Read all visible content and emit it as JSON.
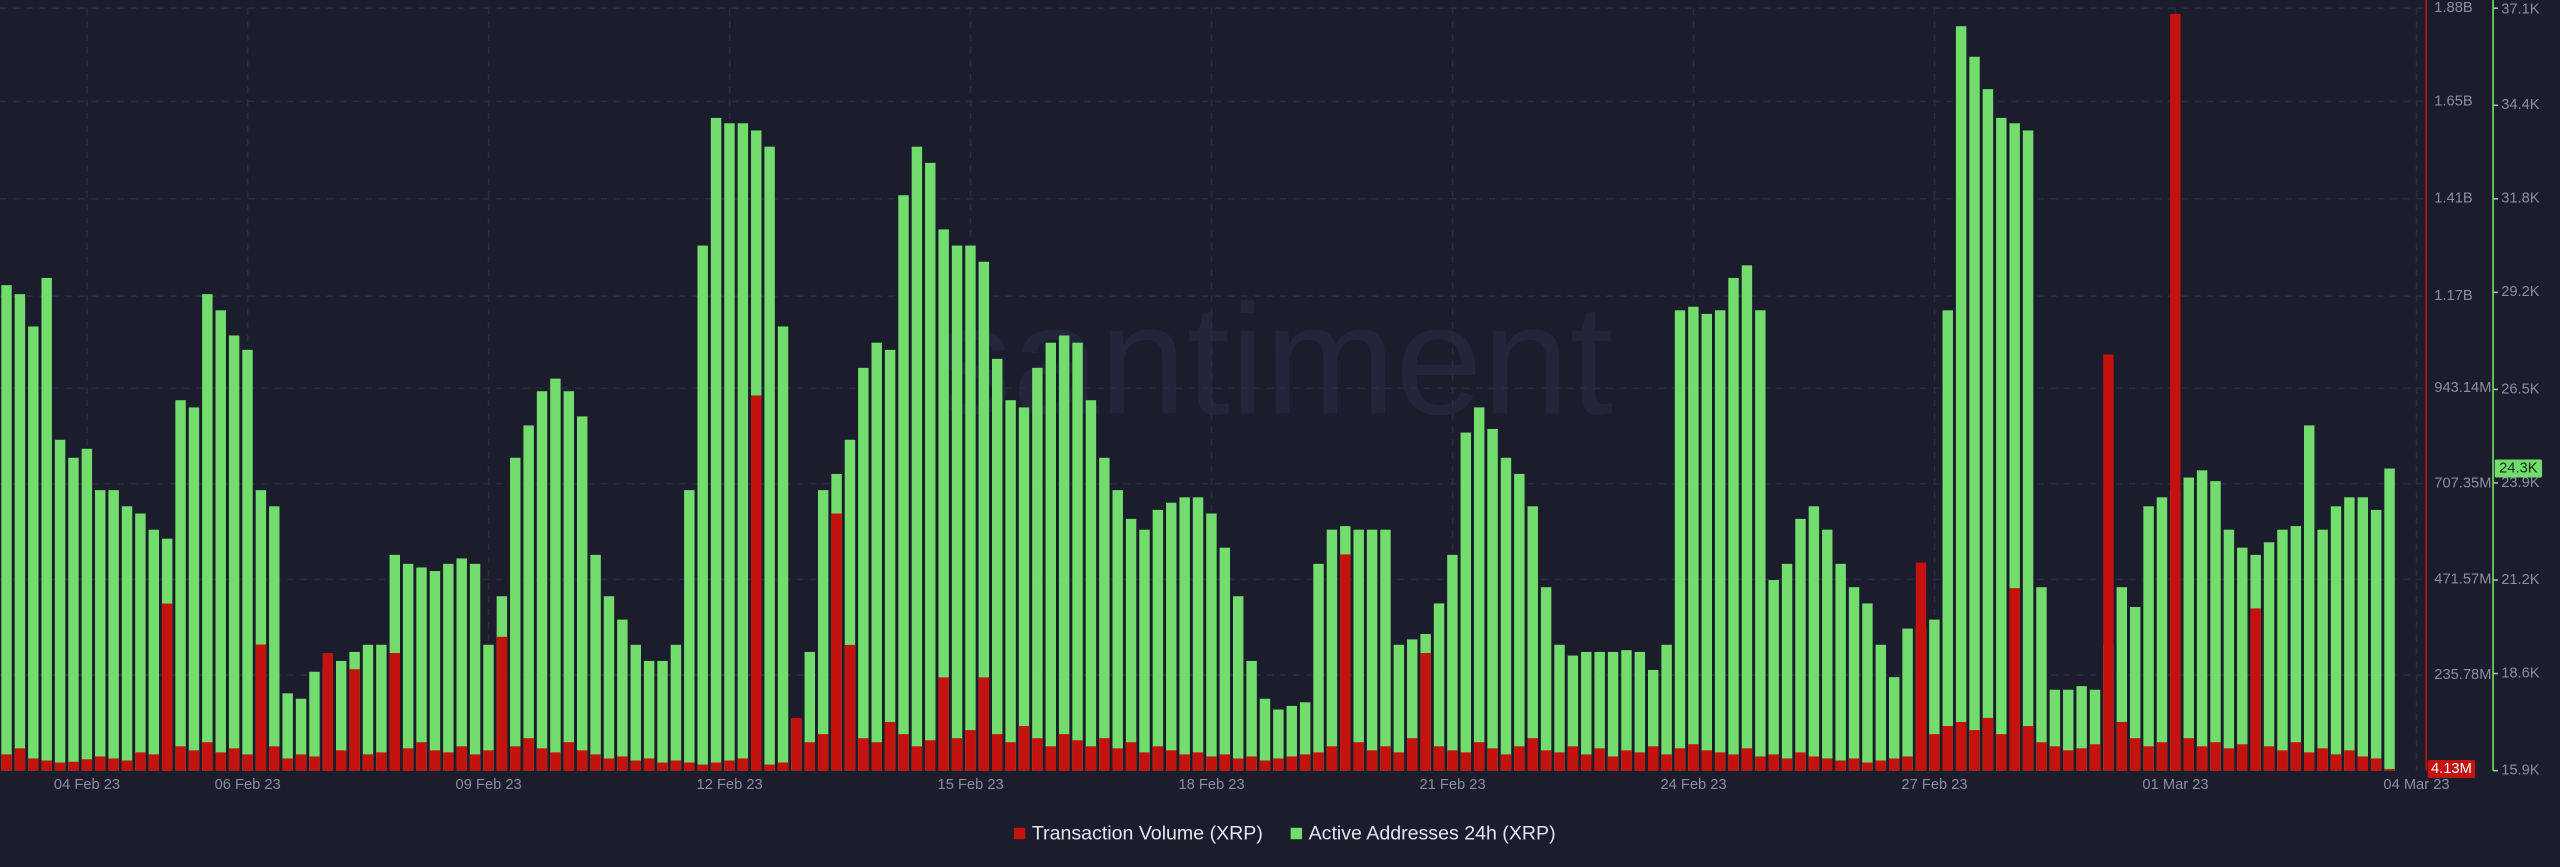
{
  "chart_data": {
    "type": "bar",
    "watermark": "santiment",
    "grid": true,
    "categories": [
      null,
      null,
      null,
      null,
      null,
      null,
      "04 Feb 23",
      null,
      null,
      null,
      null,
      null,
      null,
      null,
      null,
      null,
      null,
      null,
      "06 Feb 23",
      null,
      null,
      null,
      null,
      null,
      null,
      null,
      null,
      null,
      null,
      null,
      null,
      null,
      null,
      null,
      null,
      null,
      "09 Feb 23",
      null,
      null,
      null,
      null,
      null,
      null,
      null,
      null,
      null,
      null,
      null,
      null,
      null,
      null,
      null,
      null,
      null,
      "12 Feb 23",
      null,
      null,
      null,
      null,
      null,
      null,
      null,
      null,
      null,
      null,
      null,
      null,
      null,
      null,
      null,
      null,
      null,
      "15 Feb 23",
      null,
      null,
      null,
      null,
      null,
      null,
      null,
      null,
      null,
      null,
      null,
      null,
      null,
      null,
      null,
      null,
      null,
      "18 Feb 23",
      null,
      null,
      null,
      null,
      null,
      null,
      null,
      null,
      null,
      null,
      null,
      null,
      null,
      null,
      null,
      null,
      null,
      "21 Feb 23",
      null,
      null,
      null,
      null,
      null,
      null,
      null,
      null,
      null,
      null,
      null,
      null,
      null,
      null,
      null,
      null,
      null,
      "24 Feb 23",
      null,
      null,
      null,
      null,
      null,
      null,
      null,
      null,
      null,
      null,
      null,
      null,
      null,
      null,
      null,
      null,
      null,
      "27 Feb 23",
      null,
      null,
      null,
      null,
      null,
      null,
      null,
      null,
      null,
      null,
      null,
      null,
      null,
      null,
      null,
      null,
      null,
      "01 Mar 23",
      null,
      null,
      null,
      null,
      null,
      null,
      null,
      null,
      null,
      null,
      null,
      null,
      null,
      null,
      null,
      null,
      null,
      "04 Mar 23"
    ],
    "ylim": [
      0,
      1880000000
    ],
    "yticks": [
      {
        "value": 235780000,
        "label": "235.78M"
      },
      {
        "value": 471570000,
        "label": "471.57M"
      },
      {
        "value": 707350000,
        "label": "707.35M"
      },
      {
        "value": 943140000,
        "label": "943.14M"
      },
      {
        "value": 1170000000,
        "label": "1.17B"
      },
      {
        "value": 1410000000,
        "label": "1.41B"
      },
      {
        "value": 1650000000,
        "label": "1.65B"
      },
      {
        "value": 1880000000,
        "label": "1.88B"
      }
    ],
    "y2lim": [
      15900,
      37100
    ],
    "y2ticks": [
      {
        "value": 15900,
        "label": "15.9K"
      },
      {
        "value": 18600,
        "label": "18.6K"
      },
      {
        "value": 21200,
        "label": "21.2K"
      },
      {
        "value": 23900,
        "label": "23.9K"
      },
      {
        "value": 26500,
        "label": "26.5K"
      },
      {
        "value": 29200,
        "label": "29.2K"
      },
      {
        "value": 31800,
        "label": "31.8K"
      },
      {
        "value": 34400,
        "label": "34.4K"
      },
      {
        "value": 37100,
        "label": "37.1K"
      }
    ],
    "series": [
      {
        "name": "Transaction Volume (XRP)",
        "color": "#c4120f",
        "current_value_label": "4.13M",
        "values": [
          40000000.0,
          55000000.0,
          30000000.0,
          25000000.0,
          20000000.0,
          22000000.0,
          28000000.0,
          35000000.0,
          30000000.0,
          25000000.0,
          45000000.0,
          40000000.0,
          412000000.0,
          60000000.0,
          50000000.0,
          70000000.0,
          45000000.0,
          55000000.0,
          40000000.0,
          311000000.0,
          60000000.0,
          30000000.0,
          40000000.0,
          35000000.0,
          290000000.0,
          50000000.0,
          250000000.0,
          40000000.0,
          45000000.0,
          290000000.0,
          55000000.0,
          70000000.0,
          50000000.0,
          45000000.0,
          60000000.0,
          40000000.0,
          50000000.0,
          330000000.0,
          60000000.0,
          80000000.0,
          55000000.0,
          45000000.0,
          70000000.0,
          50000000.0,
          40000000.0,
          30000000.0,
          35000000.0,
          25000000.0,
          30000000.0,
          20000000.0,
          25000000.0,
          20000000.0,
          15000000.0,
          20000000.0,
          25000000.0,
          30000000.0,
          925000000.0,
          15000000.0,
          20000000.0,
          130000000.0,
          70000000.0,
          90000000.0,
          634000000.0,
          310000000.0,
          80000000.0,
          70000000.0,
          120000000.0,
          90000000.0,
          60000000.0,
          75000000.0,
          230000000.0,
          80000000.0,
          100000000.0,
          230000000.0,
          90000000.0,
          70000000.0,
          110000000.0,
          80000000.0,
          60000000.0,
          90000000.0,
          75000000.0,
          60000000.0,
          80000000.0,
          55000000.0,
          70000000.0,
          45000000.0,
          60000000.0,
          50000000.0,
          40000000.0,
          45000000.0,
          35000000.0,
          40000000.0,
          30000000.0,
          35000000.0,
          25000000.0,
          30000000.0,
          35000000.0,
          40000000.0,
          45000000.0,
          60000000.0,
          533000000.0,
          70000000.0,
          50000000.0,
          60000000.0,
          45000000.0,
          80000000.0,
          290000000.0,
          60000000.0,
          50000000.0,
          45000000.0,
          70000000.0,
          55000000.0,
          40000000.0,
          60000000.0,
          80000000.0,
          50000000.0,
          45000000.0,
          60000000.0,
          40000000.0,
          55000000.0,
          35000000.0,
          50000000.0,
          45000000.0,
          60000000.0,
          40000000.0,
          55000000.0,
          65000000.0,
          50000000.0,
          45000000.0,
          40000000.0,
          55000000.0,
          35000000.0,
          40000000.0,
          30000000.0,
          45000000.0,
          35000000.0,
          30000000.0,
          25000000.0,
          30000000.0,
          20000000.0,
          25000000.0,
          30000000.0,
          35000000.0,
          513000000.0,
          90000000.0,
          110000000.0,
          120000000.0,
          100000000.0,
          130000000.0,
          90000000.0,
          450000000.0,
          110000000.0,
          70000000.0,
          60000000.0,
          50000000.0,
          55000000.0,
          65000000.0,
          1026000000.0,
          120000000.0,
          80000000.0,
          60000000.0,
          70000000.0,
          1866000000.0,
          80000000.0,
          60000000.0,
          70000000.0,
          55000000.0,
          65000000.0,
          400000000.0,
          60000000.0,
          50000000.0,
          70000000.0,
          45000000.0,
          55000000.0,
          40000000.0,
          50000000.0,
          35000000.0,
          30000000.0,
          4130000,
          null,
          null
        ]
      },
      {
        "name": "Active Addresses 24h (XRP)",
        "color": "#72dc6c",
        "axis": "y2",
        "current_value_label": "24.3K",
        "values": [
          29400,
          29150,
          28250,
          29600,
          25100,
          24600,
          24850,
          23700,
          23700,
          23250,
          23050,
          22600,
          22350,
          26200,
          26000,
          29150,
          28700,
          28000,
          27600,
          23700,
          23250,
          18050,
          17900,
          18650,
          18700,
          18950,
          19200,
          19400,
          19400,
          21900,
          21650,
          21550,
          21450,
          21650,
          21800,
          21650,
          19400,
          20750,
          24600,
          25500,
          26450,
          26800,
          26450,
          25750,
          21900,
          20750,
          20100,
          19400,
          18950,
          18950,
          19400,
          23700,
          30500,
          34050,
          33900,
          33900,
          33700,
          33250,
          28250,
          17350,
          19200,
          23700,
          24150,
          25100,
          27100,
          27800,
          27600,
          31900,
          33250,
          32800,
          30950,
          30500,
          30500,
          30050,
          27350,
          26200,
          26000,
          27100,
          27800,
          28000,
          27800,
          26200,
          24600,
          23700,
          22900,
          22600,
          23150,
          23350,
          23500,
          23500,
          23050,
          22100,
          20750,
          18950,
          17900,
          17600,
          17700,
          17800,
          21650,
          22600,
          22700,
          22600,
          22600,
          22600,
          19400,
          19550,
          19700,
          20550,
          21900,
          25300,
          26000,
          25400,
          24600,
          24150,
          23250,
          21000,
          19400,
          19100,
          19200,
          19200,
          19200,
          19250,
          19200,
          18700,
          19400,
          28700,
          28800,
          28600,
          28700,
          29600,
          29950,
          28700,
          21200,
          21650,
          22900,
          23250,
          22600,
          21650,
          21000,
          20550,
          19400,
          18500,
          19850,
          19850,
          20100,
          28700,
          36600,
          35750,
          34850,
          34050,
          33900,
          33700,
          21000,
          18150,
          18150,
          18250,
          18150,
          19400,
          21000,
          20450,
          23250,
          23500,
          23700,
          24050,
          24250,
          23950,
          22600,
          22100,
          21900,
          22250,
          22600,
          22700,
          25500,
          22600,
          23250,
          23500,
          23500,
          23150,
          24300,
          null,
          null
        ]
      }
    ]
  }
}
